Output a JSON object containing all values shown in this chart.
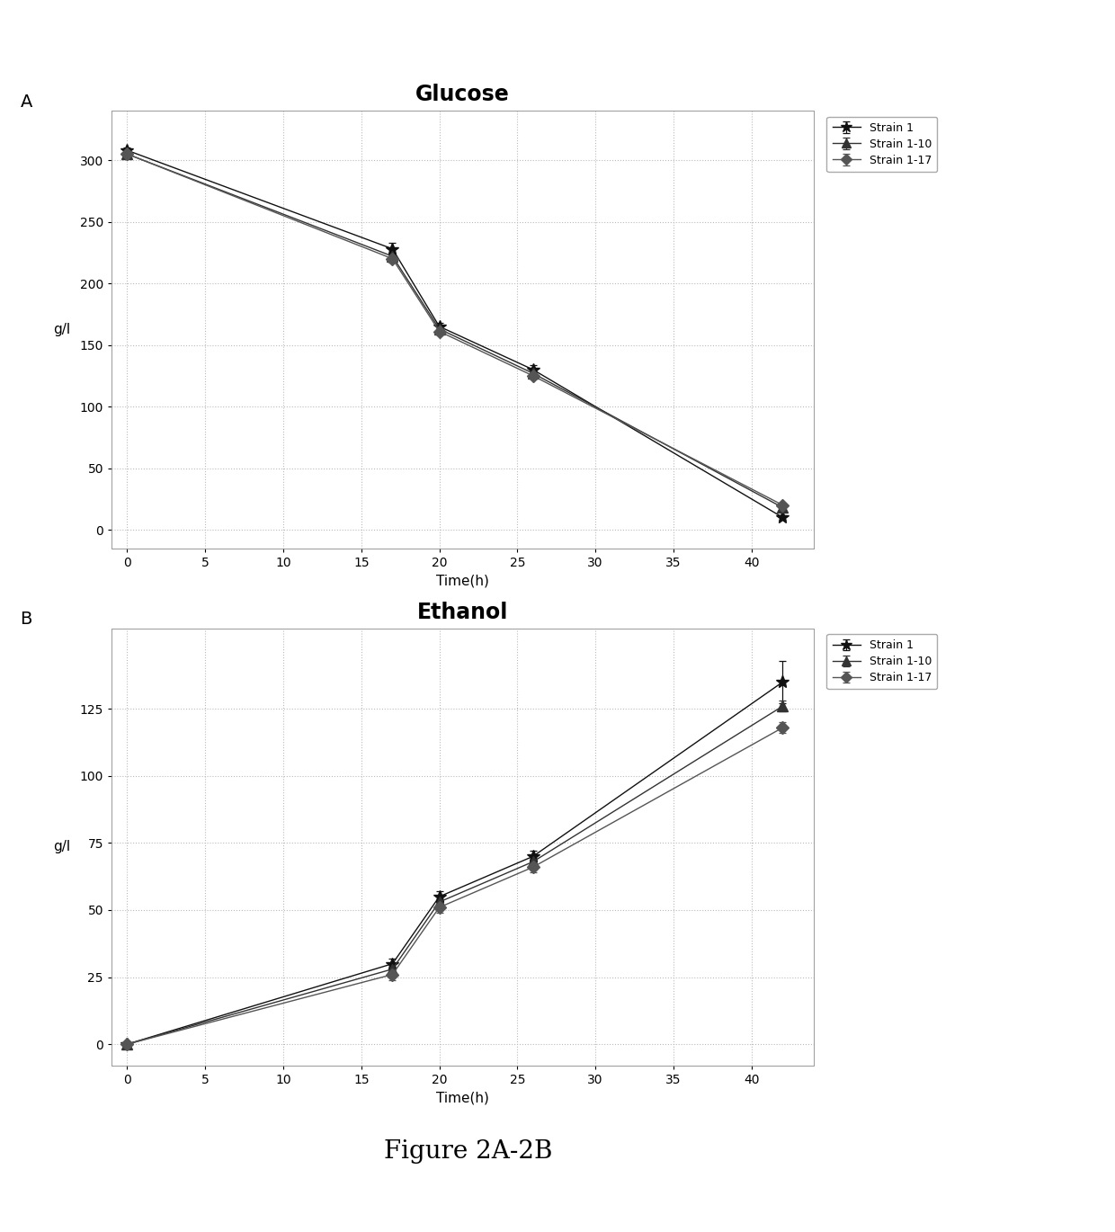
{
  "glucose": {
    "title": "Glucose",
    "panel_label": "A",
    "strains": [
      "Strain 1",
      "Strain 1-10",
      "Strain 1-17"
    ],
    "time": [
      0,
      17,
      20,
      26,
      42
    ],
    "values": {
      "Strain 1": [
        308,
        228,
        165,
        130,
        10
      ],
      "Strain 1-10": [
        305,
        222,
        163,
        127,
        18
      ],
      "Strain 1-17": [
        305,
        220,
        161,
        125,
        20
      ]
    },
    "errors": {
      "Strain 1": [
        2,
        5,
        3,
        4,
        2
      ],
      "Strain 1-10": [
        2,
        3,
        2,
        2,
        2
      ],
      "Strain 1-17": [
        2,
        3,
        2,
        2,
        2
      ]
    },
    "markers": [
      "*",
      "^",
      "D"
    ],
    "markersize": [
      10,
      8,
      7
    ],
    "colors": [
      "#111111",
      "#333333",
      "#555555"
    ],
    "linewidths": [
      1.0,
      1.0,
      1.0
    ],
    "ylim": [
      -15,
      340
    ],
    "yticks": [
      0,
      50,
      100,
      150,
      200,
      250,
      300
    ],
    "ylabel": "g/l",
    "xlabel": "Time(h)",
    "xlim": [
      -1,
      44
    ],
    "xticks": [
      0,
      5,
      10,
      15,
      20,
      25,
      30,
      35,
      40
    ]
  },
  "ethanol": {
    "title": "Ethanol",
    "panel_label": "B",
    "strains": [
      "Strain 1",
      "Strain 1-10",
      "Strain 1-17"
    ],
    "time": [
      0,
      17,
      20,
      26,
      42
    ],
    "values": {
      "Strain 1": [
        0,
        30,
        55,
        70,
        135
      ],
      "Strain 1-10": [
        0,
        28,
        53,
        68,
        126
      ],
      "Strain 1-17": [
        0,
        26,
        51,
        66,
        118
      ]
    },
    "errors": {
      "Strain 1": [
        0,
        2,
        2,
        2,
        8
      ],
      "Strain 1-10": [
        0,
        2,
        2,
        2,
        2
      ],
      "Strain 1-17": [
        0,
        2,
        2,
        2,
        2
      ]
    },
    "markers": [
      "*",
      "^",
      "D"
    ],
    "markersize": [
      10,
      8,
      7
    ],
    "colors": [
      "#111111",
      "#333333",
      "#555555"
    ],
    "linewidths": [
      1.0,
      1.0,
      1.0
    ],
    "ylim": [
      -8,
      155
    ],
    "yticks": [
      0,
      25,
      50,
      75,
      100,
      125
    ],
    "ylabel": "g/l",
    "xlabel": "Time(h)",
    "xlim": [
      -1,
      44
    ],
    "xticks": [
      0,
      5,
      10,
      15,
      20,
      25,
      30,
      35,
      40
    ]
  },
  "figure_caption": "Figure 2A-2B",
  "background_color": "#ffffff",
  "grid_color": "#bbbbbb",
  "grid_linestyle": ":",
  "grid_linewidth": 0.8,
  "line_width": 1.0,
  "font_size_title": 17,
  "font_size_label": 11,
  "font_size_tick": 10,
  "font_size_legend": 9,
  "font_size_panel": 14,
  "font_size_caption": 20,
  "legend_marker_scale": 0.9
}
